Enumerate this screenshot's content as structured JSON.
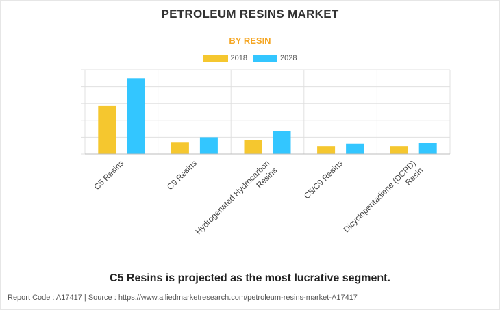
{
  "header": {
    "title": "PETROLEUM RESINS MARKET",
    "subtitle": "BY RESIN"
  },
  "colors": {
    "accent": "#f5a623",
    "series_2018": "#f5c72f",
    "series_2028": "#33c6ff",
    "grid": "#e0e0e0"
  },
  "chart_data": {
    "type": "bar",
    "categories": [
      "C5 Resins",
      "C9 Resins",
      "Hydrogenated Hydrocarbon Resins",
      "C5/C9 Resins",
      "Dicyclopentadiene (DCPD) Resin"
    ],
    "category_lines": [
      [
        "C5 Resins"
      ],
      [
        "C9 Resins"
      ],
      [
        "Hydrogenated Hydrocarbon",
        "Resins"
      ],
      [
        "C5/C9 Resins"
      ],
      [
        "Dicyclopentadiene (DCPD)",
        "Resin"
      ]
    ],
    "series": [
      {
        "name": "2018",
        "values": [
          2.85,
          0.68,
          0.85,
          0.44,
          0.44
        ]
      },
      {
        "name": "2028",
        "values": [
          4.5,
          1.0,
          1.38,
          0.62,
          0.65
        ]
      }
    ],
    "ylim": [
      0,
      5
    ],
    "yticks": [
      0,
      1,
      2,
      3,
      4,
      5
    ],
    "ytick_labels_shown": false,
    "grid": true,
    "legend_position": "top-center",
    "title": "PETROLEUM RESINS MARKET",
    "subtitle": "BY RESIN",
    "xlabel": "",
    "ylabel": ""
  },
  "footer": {
    "headline": "C5 Resins is projected as the most lucrative segment.",
    "source": "Report Code : A17417  |  Source : https://www.alliedmarketresearch.com/petroleum-resins-market-A17417"
  }
}
